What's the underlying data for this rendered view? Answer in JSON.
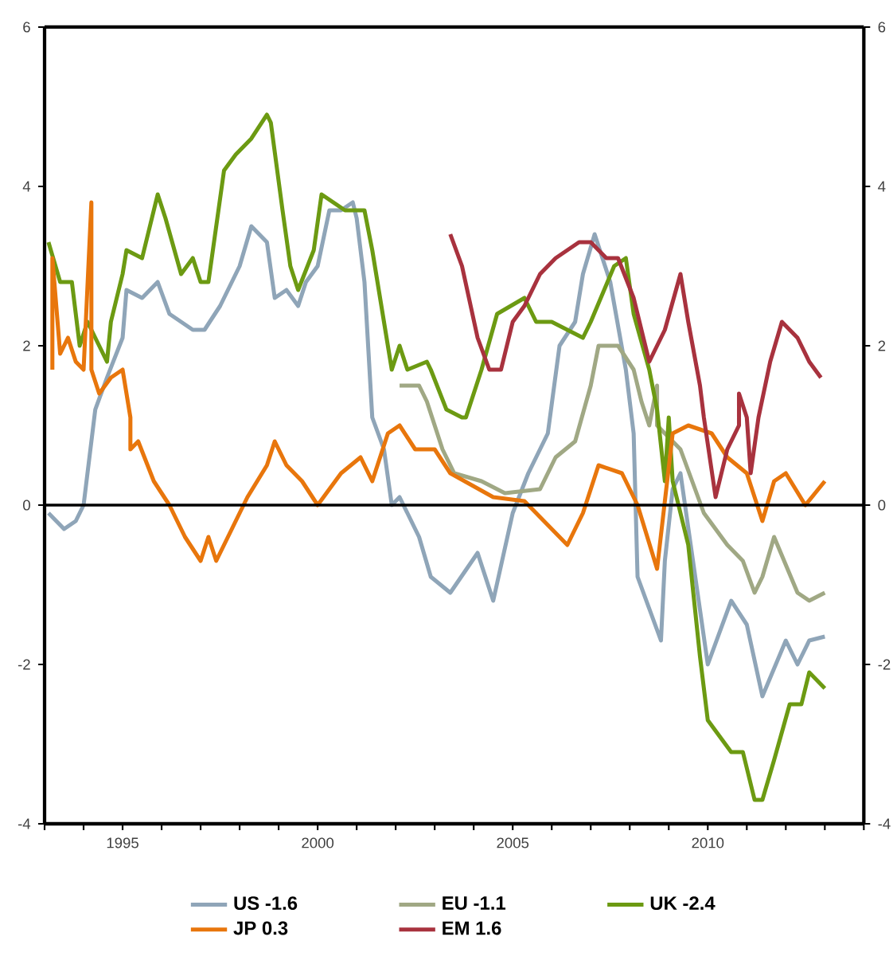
{
  "chart_data": {
    "type": "line",
    "xlim": [
      1993,
      2014
    ],
    "ylim": [
      -4,
      6
    ],
    "y2lim": [
      -4,
      6
    ],
    "xticks": [
      {
        "value": 1993,
        "label": null
      },
      {
        "value": 1994,
        "label": null
      },
      {
        "value": 1995,
        "label": "1995"
      },
      {
        "value": 1996,
        "label": null
      },
      {
        "value": 1997,
        "label": null
      },
      {
        "value": 1998,
        "label": null
      },
      {
        "value": 1999,
        "label": null
      },
      {
        "value": 2000,
        "label": "2000"
      },
      {
        "value": 2001,
        "label": null
      },
      {
        "value": 2002,
        "label": null
      },
      {
        "value": 2003,
        "label": null
      },
      {
        "value": 2004,
        "label": null
      },
      {
        "value": 2005,
        "label": "2005"
      },
      {
        "value": 2006,
        "label": null
      },
      {
        "value": 2007,
        "label": null
      },
      {
        "value": 2008,
        "label": null
      },
      {
        "value": 2009,
        "label": null
      },
      {
        "value": 2010,
        "label": "2010"
      },
      {
        "value": 2011,
        "label": null
      },
      {
        "value": 2012,
        "label": null
      },
      {
        "value": 2013,
        "label": null
      },
      {
        "value": 2014,
        "label": null
      }
    ],
    "yticks": [
      -4,
      -2,
      0,
      2,
      4,
      6
    ],
    "y2ticks": [
      -4,
      -2,
      0,
      2,
      4,
      6
    ],
    "ref_lines": [
      {
        "axis": "y",
        "value": 0,
        "color": "#000000"
      }
    ],
    "legend": "bottom",
    "series": [
      {
        "name": "US -1.6",
        "color": "#8fa5b8",
        "x": [
          1993.1,
          1993.5,
          1993.8,
          1994.0,
          1994.3,
          1994.6,
          1995.0,
          1995.1,
          1995.5,
          1995.9,
          1996.2,
          1996.8,
          1997.1,
          1997.5,
          1998.0,
          1998.3,
          1998.7,
          1998.9,
          1999.2,
          1999.5,
          1999.7,
          2000.0,
          2000.3,
          2000.6,
          2000.9,
          2001.0,
          2001.2,
          2001.4,
          2001.7,
          2001.9,
          2002.1,
          2002.6,
          2002.9,
          2003.4,
          2004.1,
          2004.5,
          2005.0,
          2005.4,
          2005.9,
          2006.2,
          2006.6,
          2006.8,
          2007.1,
          2007.5,
          2007.9,
          2008.1,
          2008.2,
          2008.5,
          2008.8,
          2008.9,
          2009.1,
          2009.3,
          2010.0,
          2010.6,
          2011.0,
          2011.4,
          2012.0,
          2012.3,
          2012.6,
          2013.0
        ],
        "values": [
          -0.1,
          -0.3,
          -0.2,
          0,
          1.2,
          1.6,
          2.1,
          2.7,
          2.6,
          2.8,
          2.4,
          2.2,
          2.2,
          2.5,
          3.0,
          3.5,
          3.3,
          2.6,
          2.7,
          2.5,
          2.8,
          3.0,
          3.7,
          3.7,
          3.8,
          3.6,
          2.8,
          1.1,
          0.7,
          0,
          0.1,
          -0.4,
          -0.9,
          -1.1,
          -0.6,
          -1.2,
          -0.1,
          0.4,
          0.9,
          2.0,
          2.3,
          2.9,
          3.4,
          2.8,
          1.7,
          0.9,
          -0.9,
          -1.3,
          -1.7,
          -0.7,
          0.2,
          0.4,
          -2.0,
          -1.2,
          -1.5,
          -2.4,
          -1.7,
          -2.0,
          -1.7,
          -1.65
        ]
      },
      {
        "name": "EU -1.1",
        "color": "#a0a884",
        "x": [
          2002.1,
          2002.6,
          2002.8,
          2003.2,
          2003.5,
          2004.2,
          2004.8,
          2005.7,
          2006.1,
          2006.6,
          2007.0,
          2007.2,
          2007.7,
          2008.1,
          2008.3,
          2008.5,
          2008.7,
          2008.7,
          2009.3,
          2009.9,
          2010.5,
          2010.9,
          2011.2,
          2011.4,
          2011.7,
          2012.3,
          2012.6,
          2013.0
        ],
        "values": [
          1.5,
          1.5,
          1.3,
          0.7,
          0.4,
          0.3,
          0.15,
          0.2,
          0.6,
          0.8,
          1.5,
          2.0,
          2.0,
          1.7,
          1.3,
          1.0,
          1.5,
          1.0,
          0.7,
          -0.1,
          -0.5,
          -0.7,
          -1.1,
          -0.9,
          -0.4,
          -1.1,
          -1.2,
          -1.1
        ]
      },
      {
        "name": "UK -2.4",
        "color": "#6c9a12",
        "x": [
          1993.1,
          1993.4,
          1993.7,
          1993.9,
          1994.1,
          1994.6,
          1994.7,
          1995.0,
          1995.1,
          1995.5,
          1995.9,
          1996.1,
          1996.5,
          1996.8,
          1997.0,
          1997.2,
          1997.6,
          1997.9,
          1998.3,
          1998.7,
          1998.8,
          1999.1,
          1999.3,
          1999.5,
          1999.9,
          2000.1,
          2000.7,
          2001.2,
          2001.4,
          2001.9,
          2002.1,
          2002.3,
          2002.8,
          2002.9,
          2003.3,
          2003.7,
          2003.8,
          2004.2,
          2004.6,
          2005.3,
          2005.6,
          2006.0,
          2006.8,
          2007.0,
          2007.6,
          2007.9,
          2008.1,
          2008.5,
          2008.7,
          2008.9,
          2009.0,
          2009.1,
          2009.5,
          2009.8,
          2010.0,
          2010.6,
          2010.9,
          2011.2,
          2011.4,
          2011.7,
          2012.1,
          2012.4,
          2012.6,
          2013.0
        ],
        "values": [
          3.3,
          2.8,
          2.8,
          2.0,
          2.3,
          1.8,
          2.3,
          2.9,
          3.2,
          3.1,
          3.9,
          3.6,
          2.9,
          3.1,
          2.8,
          2.8,
          4.2,
          4.4,
          4.6,
          4.9,
          4.8,
          3.7,
          3.0,
          2.7,
          3.2,
          3.9,
          3.7,
          3.7,
          3.2,
          1.7,
          2.0,
          1.7,
          1.8,
          1.7,
          1.2,
          1.1,
          1.1,
          1.7,
          2.4,
          2.6,
          2.3,
          2.3,
          2.1,
          2.3,
          3.0,
          3.1,
          2.4,
          1.7,
          1.2,
          0.3,
          1.1,
          0.3,
          -0.5,
          -1.9,
          -2.7,
          -3.1,
          -3.1,
          -3.7,
          -3.7,
          -3.2,
          -2.5,
          -2.5,
          -2.1,
          -2.3
        ]
      },
      {
        "name": "JP 0.3",
        "color": "#e8760c",
        "x": [
          1993.2,
          1993.2,
          1993.4,
          1993.6,
          1993.8,
          1994.0,
          1994.2,
          1994.2,
          1994.4,
          1994.7,
          1995.0,
          1995.2,
          1995.2,
          1995.4,
          1995.8,
          1996.2,
          1996.6,
          1997.0,
          1997.2,
          1997.4,
          1997.8,
          1998.2,
          1998.7,
          1998.9,
          1999.2,
          1999.6,
          2000.0,
          2000.6,
          2001.1,
          2001.4,
          2001.8,
          2002.1,
          2002.5,
          2003.0,
          2003.4,
          2004.5,
          2005.3,
          2006.4,
          2006.8,
          2007.2,
          2007.8,
          2008.2,
          2008.7,
          2009.1,
          2009.5,
          2010.1,
          2010.5,
          2011.0,
          2011.4,
          2011.7,
          2012.0,
          2012.5,
          2013.0
        ],
        "values": [
          1.7,
          3.1,
          1.9,
          2.1,
          1.8,
          1.7,
          3.8,
          1.7,
          1.4,
          1.6,
          1.7,
          1.1,
          0.7,
          0.8,
          0.3,
          0,
          -0.4,
          -0.7,
          -0.4,
          -0.7,
          -0.3,
          0.1,
          0.5,
          0.8,
          0.5,
          0.3,
          0,
          0.4,
          0.6,
          0.3,
          0.9,
          1.0,
          0.7,
          0.7,
          0.4,
          0.1,
          0.05,
          -0.5,
          -0.1,
          0.5,
          0.4,
          0,
          -0.8,
          0.9,
          1.0,
          0.9,
          0.6,
          0.4,
          -0.2,
          0.3,
          0.4,
          0,
          0.3
        ]
      },
      {
        "name": "EM 1.6",
        "color": "#a8323e",
        "x": [
          2003.4,
          2003.7,
          2004.1,
          2004.4,
          2004.7,
          2005.0,
          2005.3,
          2005.7,
          2006.1,
          2006.7,
          2007.0,
          2007.4,
          2007.7,
          2008.1,
          2008.5,
          2008.9,
          2009.3,
          2009.5,
          2009.8,
          2009.9,
          2010.2,
          2010.5,
          2010.8,
          2010.8,
          2011.0,
          2011.1,
          2011.3,
          2011.6,
          2011.9,
          2012.3,
          2012.6,
          2012.9
        ],
        "values": [
          3.4,
          3.0,
          2.1,
          1.7,
          1.7,
          2.3,
          2.5,
          2.9,
          3.1,
          3.3,
          3.3,
          3.1,
          3.1,
          2.6,
          1.8,
          2.2,
          2.9,
          2.3,
          1.5,
          1.1,
          0.1,
          0.7,
          1.0,
          1.4,
          1.1,
          0.4,
          1.1,
          1.8,
          2.3,
          2.1,
          1.8,
          1.6
        ]
      }
    ]
  }
}
